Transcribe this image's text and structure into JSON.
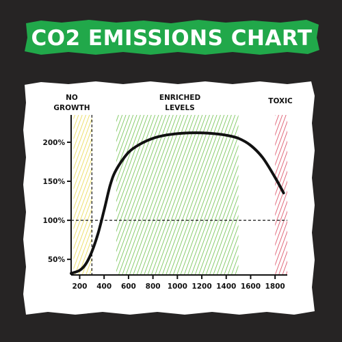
{
  "title": "CO2 EMISSIONS CHART",
  "colors": {
    "background": "#262424",
    "banner": "#21a84a",
    "paper": "#ffffff",
    "curve": "#111111",
    "no_growth_hatch": "#e8d84a",
    "enriched_hatch": "#6cc04a",
    "toxic_hatch": "#d9445a"
  },
  "zones": {
    "no_growth": {
      "label_line1": "NO",
      "label_line2": "GROWTH",
      "x_range": [
        150,
        300
      ]
    },
    "enriched": {
      "label_line1": "ENRICHED",
      "label_line2": "LEVELS",
      "x_range": [
        500,
        1500
      ]
    },
    "toxic": {
      "label": "TOXIC",
      "x_range": [
        1800,
        1900
      ]
    }
  },
  "chart_data": {
    "type": "line",
    "title": "CO2 EMISSIONS CHART",
    "xlim": [
      130,
      1900
    ],
    "ylim": [
      30,
      235
    ],
    "x_ticks": [
      200,
      400,
      600,
      800,
      1000,
      1200,
      1400,
      1600,
      1800
    ],
    "x_tick_labels": [
      "200",
      "400",
      "600",
      "800",
      "1000",
      "1200",
      "1400",
      "1600",
      "1800"
    ],
    "y_ticks": [
      50,
      100,
      150,
      200
    ],
    "y_tick_labels": [
      "50%",
      "100%",
      "150%",
      "200%"
    ],
    "reference_lines": {
      "x": 300,
      "y": 100
    },
    "series": [
      {
        "x": [
          130,
          200,
          250,
          300,
          350,
          400,
          450,
          500,
          600,
          700,
          800,
          900,
          1000,
          1100,
          1200,
          1300,
          1400,
          1500,
          1600,
          1700,
          1800,
          1870
        ],
        "y": [
          32,
          36,
          44,
          60,
          83,
          113,
          145,
          165,
          187,
          198,
          205,
          209,
          211,
          212,
          212,
          211,
          209,
          205,
          196,
          180,
          155,
          135
        ]
      }
    ]
  }
}
